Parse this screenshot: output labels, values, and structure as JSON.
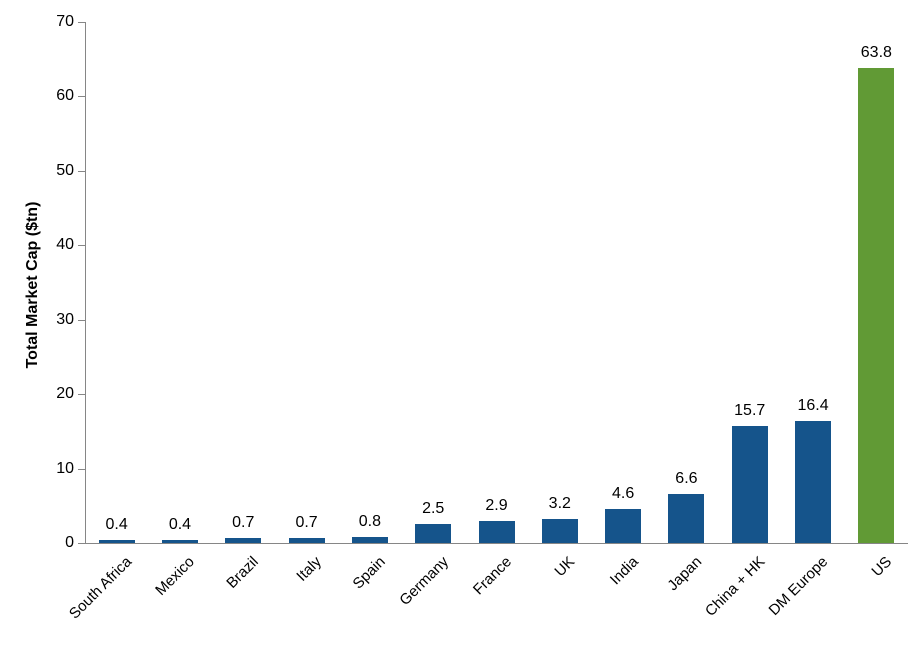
{
  "chart_data": {
    "type": "bar",
    "title": "",
    "xlabel": "",
    "ylabel": "Total Market Cap ($tn)",
    "categories": [
      "South Africa",
      "Mexico",
      "Brazil",
      "Italy",
      "Spain",
      "Germany",
      "France",
      "UK",
      "India",
      "Japan",
      "China + HK",
      "DM Europe",
      "US"
    ],
    "values": [
      0.4,
      0.4,
      0.7,
      0.7,
      0.8,
      2.5,
      2.9,
      3.2,
      4.6,
      6.6,
      15.7,
      16.4,
      63.8
    ],
    "value_labels": [
      "0.4",
      "0.4",
      "0.7",
      "0.7",
      "0.8",
      "2.5",
      "2.9",
      "3.2",
      "4.6",
      "6.6",
      "15.7",
      "16.4",
      "63.8"
    ],
    "bar_colors": [
      "#15548B",
      "#15548B",
      "#15548B",
      "#15548B",
      "#15548B",
      "#15548B",
      "#15548B",
      "#15548B",
      "#15548B",
      "#15548B",
      "#15548B",
      "#15548B",
      "#619A35"
    ],
    "highlight_category": "US",
    "highlight_color": "#619A35",
    "default_bar_color": "#15548B",
    "ylim": [
      0,
      70
    ],
    "yticks": [
      0,
      10,
      20,
      30,
      40,
      50,
      60,
      70
    ],
    "grid": false,
    "legend": "none",
    "axis_color": "#868686",
    "text_color": "#000000",
    "category_label_rotation_deg": -45
  }
}
